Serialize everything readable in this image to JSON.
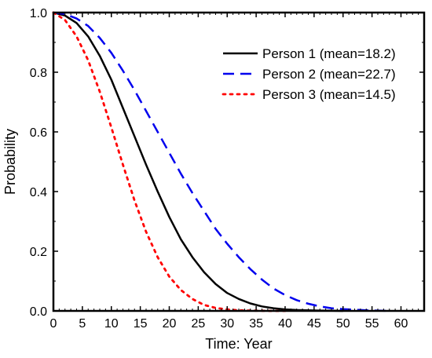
{
  "chart_data": {
    "type": "line",
    "title": "",
    "xlabel": "Time: Year",
    "ylabel": "Probability",
    "xlim": [
      0,
      64
    ],
    "ylim": [
      0,
      1
    ],
    "xticks": [
      0,
      5,
      10,
      15,
      20,
      25,
      30,
      35,
      40,
      45,
      50,
      55,
      60
    ],
    "yticks": [
      0.0,
      0.2,
      0.4,
      0.6,
      0.8,
      1.0
    ],
    "xtick_labels": [
      "0",
      "5",
      "10",
      "15",
      "20",
      "25",
      "30",
      "35",
      "40",
      "45",
      "50",
      "55",
      "60"
    ],
    "ytick_labels": [
      "0.0",
      "0.2",
      "0.4",
      "0.6",
      "0.8",
      "1.0"
    ],
    "grid": false,
    "legend_position": "top-right",
    "series": [
      {
        "name": "Person 1 (mean=18.2)",
        "color": "#000000",
        "line_style": "solid",
        "x": [
          0,
          2,
          4,
          6,
          8,
          10,
          12,
          14,
          16,
          18,
          20,
          22,
          24,
          26,
          28,
          30,
          32,
          34,
          36,
          38,
          40,
          42,
          44,
          46,
          48,
          50
        ],
        "y": [
          1.0,
          0.99,
          0.965,
          0.92,
          0.855,
          0.775,
          0.68,
          0.585,
          0.49,
          0.4,
          0.315,
          0.24,
          0.18,
          0.13,
          0.09,
          0.06,
          0.04,
          0.025,
          0.015,
          0.009,
          0.005,
          0.003,
          0.002,
          0.001,
          0.0005,
          0.0
        ]
      },
      {
        "name": "Person 2 (mean=22.7)",
        "color": "#0000ee",
        "line_style": "dashed",
        "x": [
          0,
          2,
          4,
          6,
          8,
          10,
          12,
          14,
          16,
          18,
          20,
          22,
          24,
          26,
          28,
          30,
          32,
          34,
          36,
          38,
          40,
          42,
          44,
          46,
          48,
          50,
          52,
          54,
          56,
          58
        ],
        "y": [
          1.0,
          0.995,
          0.98,
          0.955,
          0.915,
          0.865,
          0.805,
          0.74,
          0.67,
          0.6,
          0.53,
          0.46,
          0.395,
          0.335,
          0.275,
          0.225,
          0.18,
          0.14,
          0.105,
          0.075,
          0.053,
          0.036,
          0.024,
          0.015,
          0.009,
          0.006,
          0.004,
          0.002,
          0.001,
          0.0
        ]
      },
      {
        "name": "Person 3 (mean=14.5)",
        "color": "#ff0000",
        "line_style": "dotted",
        "x": [
          0,
          2,
          4,
          6,
          8,
          10,
          12,
          14,
          16,
          18,
          20,
          22,
          24,
          26,
          28,
          30,
          32,
          34,
          36,
          38,
          40
        ],
        "y": [
          1.0,
          0.975,
          0.92,
          0.84,
          0.735,
          0.615,
          0.49,
          0.37,
          0.265,
          0.18,
          0.115,
          0.07,
          0.04,
          0.02,
          0.01,
          0.005,
          0.002,
          0.001,
          0.0005,
          0.0,
          0.0
        ]
      }
    ]
  }
}
